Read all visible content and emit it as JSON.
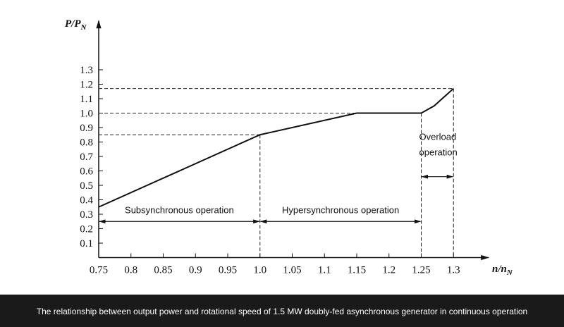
{
  "chart_data": {
    "type": "line",
    "y_label": {
      "main": "P/P",
      "sub": "N"
    },
    "x_label": {
      "main": "n/n",
      "sub": "N"
    },
    "caption": "The relationship between output power and rotational speed of 1.5 MW doubly-fed asynchronous generator in continuous operation",
    "x": [
      0.75,
      1.0,
      1.15,
      1.25,
      1.27,
      1.3
    ],
    "series": [
      {
        "color": "#111111",
        "values": [
          0.35,
          0.85,
          1.0,
          1.0,
          1.05,
          1.17
        ]
      }
    ],
    "xlim": [
      0.75,
      1.35
    ],
    "ylim": [
      0,
      1.6
    ],
    "xticks": [
      0.75,
      0.8,
      0.85,
      0.9,
      0.95,
      {
        "value": 1,
        "label": "1.0"
      },
      1.05,
      1.1,
      1.15,
      1.2,
      1.25,
      1.3
    ],
    "yticks": [
      0.1,
      0.2,
      0.3,
      0.4,
      0.5,
      0.6,
      0.7,
      0.8,
      0.9,
      {
        "value": 1,
        "label": "1.0"
      },
      1.1,
      1.2,
      1.3
    ],
    "reference_points": [
      1,
      3,
      5
    ],
    "regions": [
      {
        "lines": [
          "Subsynchronous operation"
        ],
        "from": 0.75,
        "to": 1.0,
        "at": 0.25
      },
      {
        "lines": [
          "Hypersynchronous operation"
        ],
        "from": 1.0,
        "to": 1.25,
        "at": 0.25
      },
      {
        "lines": [
          "Overload",
          "operation"
        ],
        "from": 1.25,
        "to": 1.3,
        "at": 0.56
      }
    ]
  }
}
